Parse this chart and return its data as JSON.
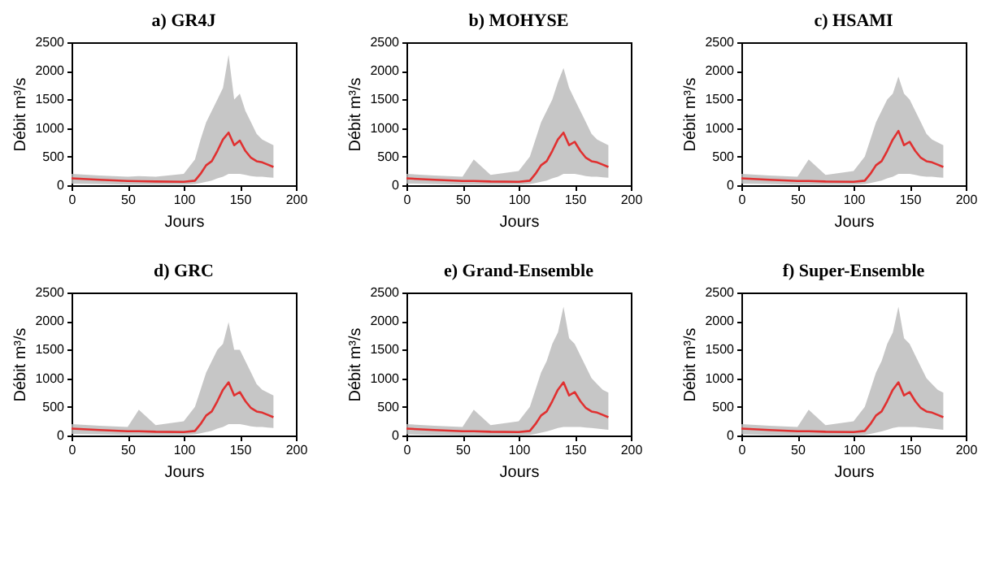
{
  "chart_data": [
    {
      "type": "line",
      "title": "a) GR4J",
      "xlabel": "Jours",
      "ylabel": "Débit m³/s",
      "x": [
        0,
        25,
        50,
        60,
        75,
        100,
        110,
        115,
        120,
        125,
        130,
        135,
        140,
        145,
        150,
        155,
        160,
        165,
        170,
        175,
        180
      ],
      "xlim": [
        0,
        200
      ],
      "xticks": [
        0,
        50,
        100,
        150,
        200
      ],
      "ylim": [
        0,
        2500
      ],
      "yticks": [
        0,
        500,
        1000,
        1500,
        2000,
        2500
      ],
      "series": [
        {
          "color": "#e03030",
          "values": [
            120,
            95,
            75,
            70,
            65,
            60,
            80,
            200,
            350,
            420,
            600,
            800,
            920,
            700,
            780,
            600,
            480,
            420,
            400,
            360,
            320
          ],
          "lower": [
            30,
            20,
            10,
            10,
            10,
            10,
            20,
            40,
            60,
            80,
            120,
            150,
            200,
            200,
            200,
            180,
            160,
            150,
            150,
            140,
            130
          ],
          "upper": [
            200,
            170,
            150,
            160,
            150,
            200,
            450,
            800,
            1100,
            1300,
            1500,
            1700,
            2280,
            1500,
            1600,
            1300,
            1100,
            900,
            800,
            750,
            700
          ]
        }
      ]
    },
    {
      "type": "line",
      "title": "b) MOHYSE",
      "xlabel": "Jours",
      "ylabel": "Débit m³/s",
      "x": [
        0,
        25,
        50,
        60,
        75,
        100,
        110,
        115,
        120,
        125,
        130,
        135,
        140,
        145,
        150,
        155,
        160,
        165,
        170,
        175,
        180
      ],
      "xlim": [
        0,
        200
      ],
      "xticks": [
        0,
        50,
        100,
        150,
        200
      ],
      "ylim": [
        0,
        2500
      ],
      "yticks": [
        0,
        500,
        1000,
        1500,
        2000,
        2500
      ],
      "series": [
        {
          "color": "#e03030",
          "values": [
            120,
            95,
            75,
            75,
            65,
            60,
            80,
            200,
            350,
            420,
            600,
            800,
            920,
            700,
            760,
            600,
            480,
            420,
            400,
            360,
            320
          ],
          "lower": [
            30,
            20,
            10,
            10,
            10,
            10,
            20,
            40,
            60,
            80,
            120,
            150,
            200,
            200,
            200,
            180,
            160,
            150,
            150,
            140,
            130
          ],
          "upper": [
            200,
            170,
            150,
            450,
            180,
            250,
            500,
            800,
            1100,
            1300,
            1500,
            1800,
            2050,
            1700,
            1500,
            1300,
            1100,
            900,
            800,
            750,
            700
          ]
        }
      ]
    },
    {
      "type": "line",
      "title": "c) HSAMI",
      "xlabel": "Jours",
      "ylabel": "Débit m³/s",
      "x": [
        0,
        25,
        50,
        60,
        75,
        100,
        110,
        115,
        120,
        125,
        130,
        135,
        140,
        145,
        150,
        155,
        160,
        165,
        170,
        175,
        180
      ],
      "xlim": [
        0,
        200
      ],
      "xticks": [
        0,
        50,
        100,
        150,
        200
      ],
      "ylim": [
        0,
        2500
      ],
      "yticks": [
        0,
        500,
        1000,
        1500,
        2000,
        2500
      ],
      "series": [
        {
          "color": "#e03030",
          "values": [
            120,
            95,
            75,
            75,
            65,
            60,
            80,
            200,
            350,
            420,
            600,
            800,
            950,
            700,
            760,
            600,
            480,
            420,
            400,
            360,
            320
          ],
          "lower": [
            30,
            20,
            10,
            10,
            10,
            10,
            20,
            40,
            60,
            80,
            120,
            150,
            200,
            200,
            200,
            180,
            160,
            150,
            150,
            140,
            130
          ],
          "upper": [
            200,
            170,
            150,
            450,
            180,
            250,
            500,
            800,
            1100,
            1300,
            1500,
            1600,
            1900,
            1600,
            1500,
            1300,
            1100,
            900,
            800,
            750,
            700
          ]
        }
      ]
    },
    {
      "type": "line",
      "title": "d) GRC",
      "xlabel": "Jours",
      "ylabel": "Débit m³/s",
      "x": [
        0,
        25,
        50,
        60,
        75,
        100,
        110,
        115,
        120,
        125,
        130,
        135,
        140,
        145,
        150,
        155,
        160,
        165,
        170,
        175,
        180
      ],
      "xlim": [
        0,
        200
      ],
      "xticks": [
        0,
        50,
        100,
        150,
        200
      ],
      "ylim": [
        0,
        2500
      ],
      "yticks": [
        0,
        500,
        1000,
        1500,
        2000,
        2500
      ],
      "series": [
        {
          "color": "#e03030",
          "values": [
            120,
            95,
            75,
            75,
            65,
            60,
            80,
            200,
            350,
            420,
            600,
            800,
            930,
            700,
            760,
            600,
            480,
            420,
            400,
            360,
            320
          ],
          "lower": [
            30,
            20,
            10,
            10,
            10,
            10,
            20,
            40,
            60,
            80,
            120,
            150,
            200,
            200,
            200,
            180,
            160,
            150,
            150,
            140,
            130
          ],
          "upper": [
            200,
            170,
            150,
            450,
            180,
            250,
            500,
            800,
            1100,
            1300,
            1500,
            1600,
            1980,
            1500,
            1500,
            1300,
            1100,
            900,
            800,
            750,
            700
          ]
        }
      ]
    },
    {
      "type": "line",
      "title": "e) Grand-Ensemble",
      "xlabel": "Jours",
      "ylabel": "Débit m³/s",
      "x": [
        0,
        25,
        50,
        60,
        75,
        100,
        110,
        115,
        120,
        125,
        130,
        135,
        140,
        145,
        150,
        155,
        160,
        165,
        170,
        175,
        180
      ],
      "xlim": [
        0,
        200
      ],
      "xticks": [
        0,
        50,
        100,
        150,
        200
      ],
      "ylim": [
        0,
        2500
      ],
      "yticks": [
        0,
        500,
        1000,
        1500,
        2000,
        2500
      ],
      "series": [
        {
          "color": "#e03030",
          "values": [
            120,
            95,
            75,
            75,
            65,
            60,
            80,
            200,
            350,
            420,
            600,
            800,
            930,
            700,
            760,
            600,
            480,
            420,
            400,
            360,
            320
          ],
          "lower": [
            20,
            10,
            5,
            5,
            5,
            5,
            10,
            30,
            50,
            70,
            100,
            130,
            150,
            150,
            150,
            150,
            140,
            130,
            120,
            110,
            100
          ],
          "upper": [
            200,
            170,
            150,
            450,
            180,
            250,
            500,
            800,
            1100,
            1300,
            1600,
            1800,
            2250,
            1700,
            1600,
            1400,
            1200,
            1000,
            900,
            800,
            750
          ]
        }
      ]
    },
    {
      "type": "line",
      "title": "f) Super-Ensemble",
      "xlabel": "Jours",
      "ylabel": "Débit m³/s",
      "x": [
        0,
        25,
        50,
        60,
        75,
        100,
        110,
        115,
        120,
        125,
        130,
        135,
        140,
        145,
        150,
        155,
        160,
        165,
        170,
        175,
        180
      ],
      "xlim": [
        0,
        200
      ],
      "xticks": [
        0,
        50,
        100,
        150,
        200
      ],
      "ylim": [
        0,
        2500
      ],
      "yticks": [
        0,
        500,
        1000,
        1500,
        2000,
        2500
      ],
      "series": [
        {
          "color": "#e03030",
          "values": [
            120,
            95,
            75,
            75,
            65,
            60,
            80,
            200,
            350,
            420,
            600,
            800,
            930,
            700,
            760,
            600,
            480,
            420,
            400,
            360,
            320
          ],
          "lower": [
            20,
            10,
            5,
            5,
            5,
            5,
            10,
            30,
            50,
            70,
            100,
            130,
            150,
            150,
            150,
            150,
            140,
            130,
            120,
            110,
            100
          ],
          "upper": [
            200,
            170,
            150,
            450,
            180,
            250,
            500,
            800,
            1100,
            1300,
            1600,
            1800,
            2250,
            1700,
            1600,
            1400,
            1200,
            1000,
            900,
            800,
            750
          ]
        }
      ]
    }
  ]
}
